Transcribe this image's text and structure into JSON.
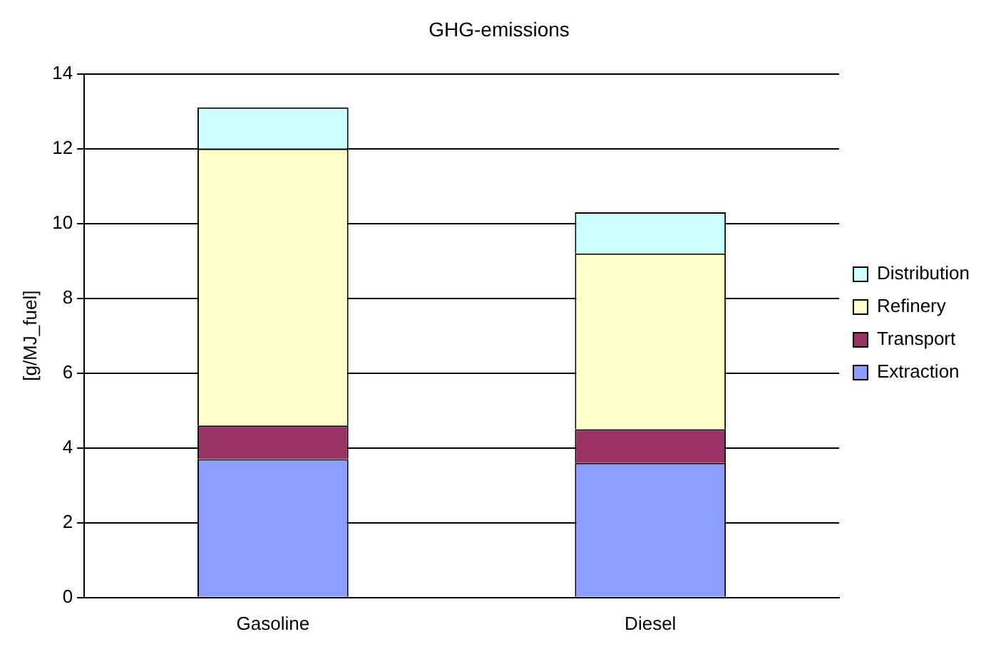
{
  "chart_data": {
    "type": "bar",
    "title": "GHG-emissions",
    "ylabel": "[g/MJ_fuel]",
    "categories": [
      "Gasoline",
      "Diesel"
    ],
    "stacked": true,
    "series": [
      {
        "name": "Extraction",
        "color": "#8c9cff",
        "values": [
          3.7,
          3.6
        ]
      },
      {
        "name": "Transport",
        "color": "#993366",
        "values": [
          0.9,
          0.9
        ]
      },
      {
        "name": "Refinery",
        "color": "#ffffcc",
        "values": [
          7.4,
          4.7
        ]
      },
      {
        "name": "Distribution",
        "color": "#ccffff",
        "values": [
          1.1,
          1.1
        ]
      }
    ],
    "ylim": [
      0,
      14
    ],
    "yticks": [
      0,
      2,
      4,
      6,
      8,
      10,
      12,
      14
    ],
    "grid": "y",
    "legend": "right"
  }
}
